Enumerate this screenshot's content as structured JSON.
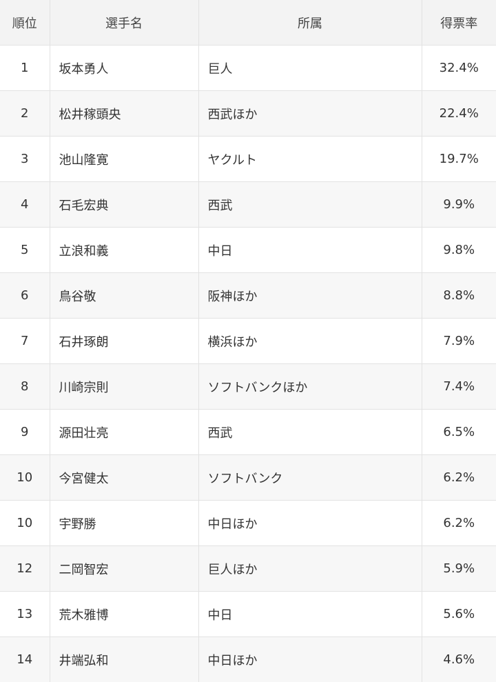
{
  "header": {
    "rank": "順位",
    "name": "選手名",
    "team": "所属",
    "rate": "得票率"
  },
  "rows": [
    {
      "rank": "1",
      "name": "坂本勇人",
      "team": "巨人",
      "rate": "32.4%"
    },
    {
      "rank": "2",
      "name": "松井稼頭央",
      "team": "西武ほか",
      "rate": "22.4%"
    },
    {
      "rank": "3",
      "name": "池山隆寛",
      "team": "ヤクルト",
      "rate": "19.7%"
    },
    {
      "rank": "4",
      "name": "石毛宏典",
      "team": "西武",
      "rate": "9.9%"
    },
    {
      "rank": "5",
      "name": "立浪和義",
      "team": "中日",
      "rate": "9.8%"
    },
    {
      "rank": "6",
      "name": "鳥谷敬",
      "team": "阪神ほか",
      "rate": "8.8%"
    },
    {
      "rank": "7",
      "name": "石井琢朗",
      "team": "横浜ほか",
      "rate": "7.9%"
    },
    {
      "rank": "8",
      "name": "川崎宗則",
      "team": "ソフトバンクほか",
      "rate": "7.4%"
    },
    {
      "rank": "9",
      "name": "源田壮亮",
      "team": "西武",
      "rate": "6.5%"
    },
    {
      "rank": "10",
      "name": "今宮健太",
      "team": "ソフトバンク",
      "rate": "6.2%"
    },
    {
      "rank": "10",
      "name": "宇野勝",
      "team": "中日ほか",
      "rate": "6.2%"
    },
    {
      "rank": "12",
      "name": "二岡智宏",
      "team": "巨人ほか",
      "rate": "5.9%"
    },
    {
      "rank": "13",
      "name": "荒木雅博",
      "team": "中日",
      "rate": "5.6%"
    },
    {
      "rank": "14",
      "name": "井端弘和",
      "team": "中日ほか",
      "rate": "4.6%"
    }
  ]
}
